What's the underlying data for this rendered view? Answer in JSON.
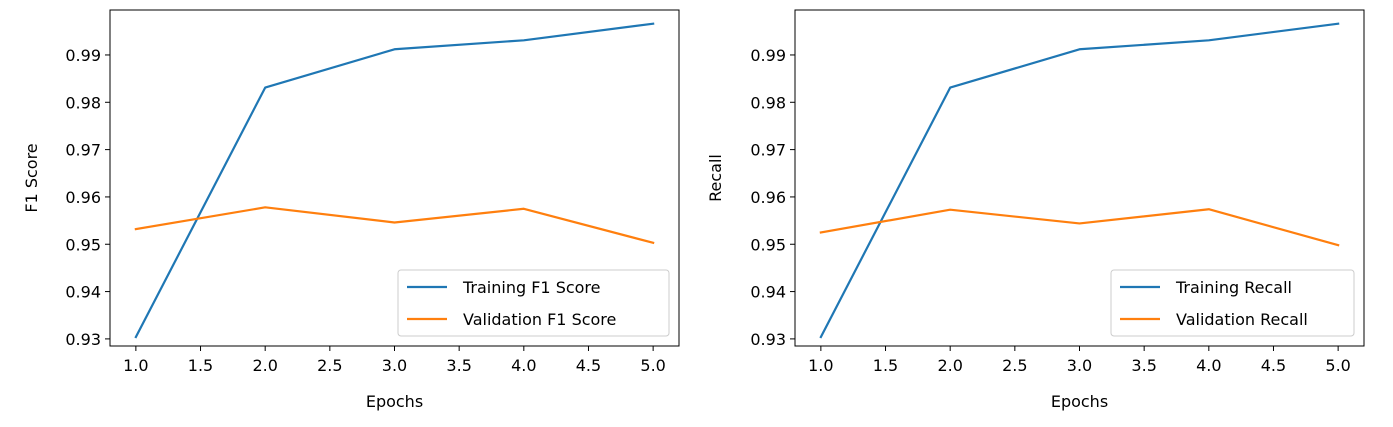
{
  "chart_data": [
    {
      "type": "line",
      "title": "",
      "xlabel": "Epochs",
      "ylabel": "F1 Score",
      "x": [
        1.0,
        2.0,
        3.0,
        4.0,
        5.0
      ],
      "xlim": [
        0.8,
        5.2
      ],
      "ylim": [
        0.9285,
        0.9995
      ],
      "xticks": [
        1.0,
        1.5,
        2.0,
        2.5,
        3.0,
        3.5,
        4.0,
        4.5,
        5.0
      ],
      "xtick_labels": [
        "1.0",
        "1.5",
        "2.0",
        "2.5",
        "3.0",
        "3.5",
        "4.0",
        "4.5",
        "5.0"
      ],
      "yticks": [
        0.93,
        0.94,
        0.95,
        0.96,
        0.97,
        0.98,
        0.99
      ],
      "ytick_labels": [
        "0.93",
        "0.94",
        "0.95",
        "0.96",
        "0.97",
        "0.98",
        "0.99"
      ],
      "grid": false,
      "legend_position": "lower-right",
      "series": [
        {
          "name": "Training F1 Score",
          "color": "#1f77b4",
          "values": [
            0.9304,
            0.9831,
            0.9912,
            0.9931,
            0.9966
          ]
        },
        {
          "name": "Validation F1 Score",
          "color": "#ff7f0e",
          "values": [
            0.9532,
            0.9578,
            0.9546,
            0.9575,
            0.9503
          ]
        }
      ]
    },
    {
      "type": "line",
      "title": "",
      "xlabel": "Epochs",
      "ylabel": "Recall",
      "x": [
        1.0,
        2.0,
        3.0,
        4.0,
        5.0
      ],
      "xlim": [
        0.8,
        5.2
      ],
      "ylim": [
        0.9285,
        0.9995
      ],
      "xticks": [
        1.0,
        1.5,
        2.0,
        2.5,
        3.0,
        3.5,
        4.0,
        4.5,
        5.0
      ],
      "xtick_labels": [
        "1.0",
        "1.5",
        "2.0",
        "2.5",
        "3.0",
        "3.5",
        "4.0",
        "4.5",
        "5.0"
      ],
      "yticks": [
        0.93,
        0.94,
        0.95,
        0.96,
        0.97,
        0.98,
        0.99
      ],
      "ytick_labels": [
        "0.93",
        "0.94",
        "0.95",
        "0.96",
        "0.97",
        "0.98",
        "0.99"
      ],
      "grid": false,
      "legend_position": "lower-right",
      "series": [
        {
          "name": "Training Recall",
          "color": "#1f77b4",
          "values": [
            0.9304,
            0.9831,
            0.9912,
            0.9931,
            0.9966
          ]
        },
        {
          "name": "Validation Recall",
          "color": "#ff7f0e",
          "values": [
            0.9525,
            0.9573,
            0.9544,
            0.9574,
            0.9498
          ]
        }
      ]
    }
  ]
}
